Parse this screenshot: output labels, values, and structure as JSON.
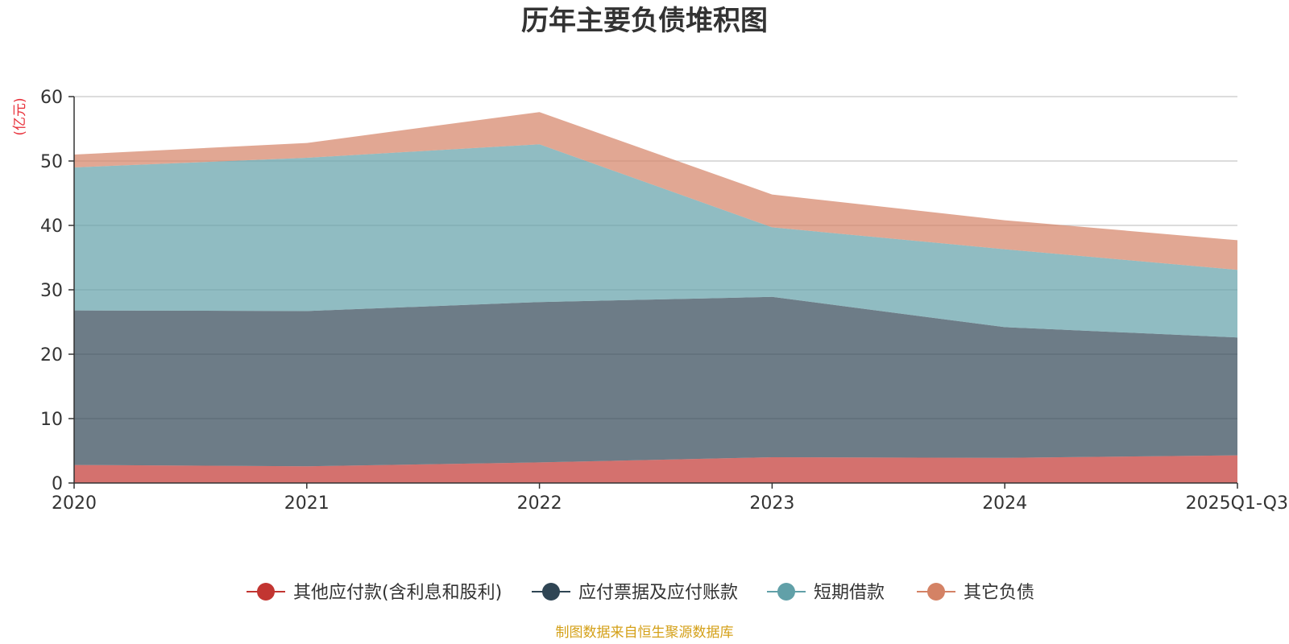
{
  "chart_data": {
    "type": "area",
    "stacked": true,
    "title": "历年主要负债堆积图",
    "unit_label": "(亿元)",
    "categories": [
      "2020",
      "2021",
      "2022",
      "2023",
      "2024",
      "2025Q1-Q3"
    ],
    "y_ticks": [
      0,
      10,
      20,
      30,
      40,
      50,
      60
    ],
    "ylim": [
      0,
      60
    ],
    "grid": true,
    "legend_position": "bottom-center",
    "series": [
      {
        "name": "其他应付款(含利息和股利)",
        "color": "#c23531",
        "values": [
          2.8,
          2.6,
          3.2,
          4.0,
          3.9,
          4.3
        ]
      },
      {
        "name": "应付票据及应付账款",
        "color": "#2f4554",
        "values": [
          24.0,
          24.1,
          24.9,
          24.9,
          20.3,
          18.3
        ]
      },
      {
        "name": "短期借款",
        "color": "#61a0a8",
        "values": [
          22.2,
          23.8,
          24.5,
          10.8,
          12.1,
          10.5
        ]
      },
      {
        "name": "其它负债",
        "color": "#d48265",
        "values": [
          2.0,
          2.3,
          5.0,
          5.1,
          4.5,
          4.6
        ]
      }
    ],
    "source": "制图数据来自恒生聚源数据库"
  },
  "colors": {
    "title": "#333333",
    "axis": "#333333",
    "grid": "#c8c8c8",
    "unit_label": "#e8303a",
    "source": "#d4a018"
  }
}
